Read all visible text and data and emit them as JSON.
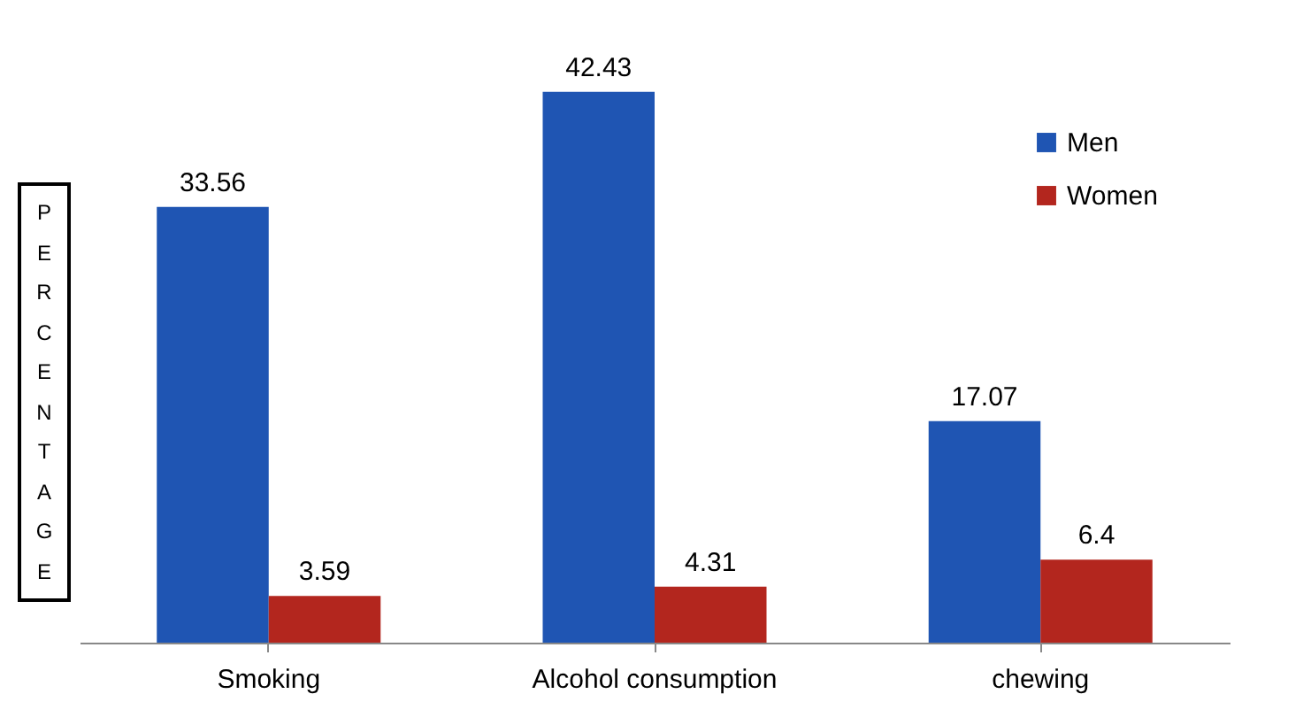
{
  "chart_data": {
    "type": "bar",
    "ylabel": "PERCENTAGE",
    "categories": [
      "Smoking",
      "Alcohol consumption",
      "chewing"
    ],
    "series": [
      {
        "name": "Men",
        "color": "#1f55b3",
        "values": [
          33.56,
          42.43,
          17.07
        ]
      },
      {
        "name": "Women",
        "color": "#b3261e",
        "values": [
          3.59,
          4.31,
          6.4
        ]
      }
    ],
    "data_labels": true,
    "legend": "top right"
  }
}
